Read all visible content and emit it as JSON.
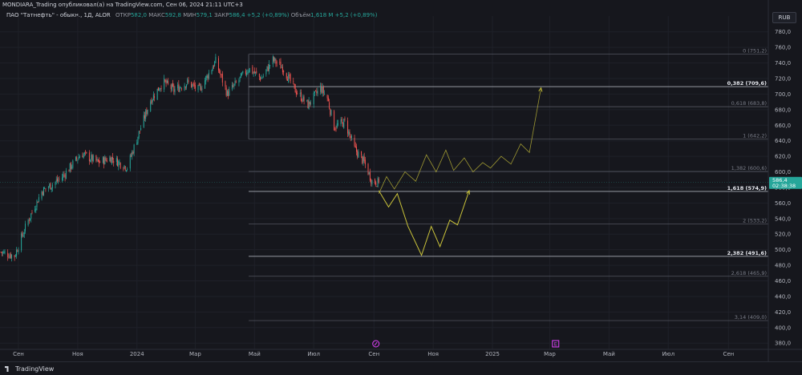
{
  "header": {
    "title_line": "MONDIARA_Trading опубликовал(а) на TradingView.com, Сен 06, 2024 21:11 UTC+3",
    "symbol": "ПАО \"Татнефть\" - обыкн., 1Д, ALOR",
    "open_label": "ОТКР",
    "open_value": "582,0",
    "high_label": "МАКС",
    "high_value": "592,8",
    "low_label": "МИН",
    "low_value": "579,1",
    "close_label": "ЗАКР",
    "close_value": "586,4 +5,2 (+0,89%)",
    "volume_label": "Объём",
    "volume_value": "1,618 M +5,2 (+0,89%)",
    "currency": "RUB"
  },
  "footer": {
    "brand": "TradingView"
  },
  "colors": {
    "background": "#16171d",
    "up": "#26a69a",
    "down": "#ef5350",
    "fib_line": "#5d606b",
    "projection": "#c9c23a",
    "price_badge": "#26a69a",
    "text": "#b2b5be"
  },
  "markers": [
    {
      "label": "",
      "icon": "dividend-marker",
      "date": "2024-09-03",
      "color": "#e040fb"
    },
    {
      "label": "E",
      "icon": "earnings-marker",
      "date": "2025-03-07",
      "color": "#e040fb"
    }
  ],
  "chart_data": {
    "type": "candlestick",
    "x_axis": {
      "type": "date",
      "range": [
        "2023-08-13",
        "2025-10-12"
      ],
      "ticks": [
        {
          "label": "Сен",
          "date": "2023-09-01"
        },
        {
          "label": "Ноя",
          "date": "2023-11-01"
        },
        {
          "label": "2024",
          "date": "2024-01-01"
        },
        {
          "label": "Мар",
          "date": "2024-03-01"
        },
        {
          "label": "Май",
          "date": "2024-05-01"
        },
        {
          "label": "Июл",
          "date": "2024-07-01"
        },
        {
          "label": "Сен",
          "date": "2024-09-01"
        },
        {
          "label": "Ноя",
          "date": "2024-11-01"
        },
        {
          "label": "2025",
          "date": "2025-01-01"
        },
        {
          "label": "Мар",
          "date": "2025-03-01"
        },
        {
          "label": "Май",
          "date": "2025-05-01"
        },
        {
          "label": "Июл",
          "date": "2025-07-01"
        },
        {
          "label": "Сен",
          "date": "2025-09-01"
        }
      ]
    },
    "y_axis": {
      "range": [
        372,
        790
      ],
      "ticks": [
        "780,0",
        "760,0",
        "740,0",
        "720,0",
        "700,0",
        "680,0",
        "660,0",
        "640,0",
        "620,0",
        "600,0",
        "580,0",
        "560,0",
        "540,0",
        "520,0",
        "500,0",
        "480,0",
        "460,0",
        "440,0",
        "420,0",
        "400,0",
        "380,0"
      ]
    },
    "last_price": {
      "value": 586.4,
      "label": "586,4",
      "countdown": "02:38:38"
    },
    "price_anchors": [
      [
        "2023-08-14",
        497
      ],
      [
        "2023-08-28",
        492
      ],
      [
        "2023-09-10",
        535
      ],
      [
        "2023-09-25",
        575
      ],
      [
        "2023-10-15",
        592
      ],
      [
        "2023-11-05",
        624
      ],
      [
        "2023-11-22",
        612
      ],
      [
        "2023-12-05",
        618
      ],
      [
        "2023-12-22",
        606
      ],
      [
        "2024-01-03",
        650
      ],
      [
        "2024-01-15",
        692
      ],
      [
        "2024-01-28",
        716
      ],
      [
        "2024-02-08",
        705
      ],
      [
        "2024-02-22",
        715
      ],
      [
        "2024-03-05",
        705
      ],
      [
        "2024-03-22",
        742
      ],
      [
        "2024-04-03",
        700
      ],
      [
        "2024-04-15",
        718
      ],
      [
        "2024-04-25",
        733
      ],
      [
        "2024-05-08",
        720
      ],
      [
        "2024-05-20",
        744
      ],
      [
        "2024-05-30",
        734
      ],
      [
        "2024-06-12",
        705
      ],
      [
        "2024-06-25",
        686
      ],
      [
        "2024-07-08",
        708
      ],
      [
        "2024-07-15",
        695
      ],
      [
        "2024-07-22",
        658
      ],
      [
        "2024-08-02",
        664
      ],
      [
        "2024-08-12",
        630
      ],
      [
        "2024-08-22",
        612
      ],
      [
        "2024-08-30",
        588
      ],
      [
        "2024-09-06",
        586.4
      ]
    ],
    "fibonacci": {
      "start_date": "2024-04-25",
      "end_date": "2025-10-12",
      "range_high": 751.2,
      "range_low": 642.2,
      "levels": [
        {
          "label": "0 (751,2)",
          "value": 751.2,
          "bold": false
        },
        {
          "label": "0,382 (709,6)",
          "value": 709.6,
          "bold": true
        },
        {
          "label": "0,618 (683,8)",
          "value": 683.8,
          "bold": false
        },
        {
          "label": "1 (642,2)",
          "value": 642.2,
          "bold": false
        },
        {
          "label": "1,382 (600,6)",
          "value": 600.6,
          "bold": false
        },
        {
          "label": "1,618 (574,9)",
          "value": 574.9,
          "bold": true
        },
        {
          "label": "2 (533,2)",
          "value": 533.2,
          "bold": false
        },
        {
          "label": "2,382 (491,6)",
          "value": 491.6,
          "bold": true
        },
        {
          "label": "2,618 (465,9)",
          "value": 465.9,
          "bold": false
        },
        {
          "label": "3,14 (409,0)",
          "value": 409.0,
          "bold": false
        }
      ]
    },
    "projections": [
      {
        "name": "",
        "points": [
          [
            "2024-09-06",
            572
          ],
          [
            "2024-09-14",
            594
          ],
          [
            "2024-09-22",
            578
          ],
          [
            "2024-10-03",
            600
          ],
          [
            "2024-10-14",
            588
          ],
          [
            "2024-10-25",
            622
          ],
          [
            "2024-11-04",
            600
          ],
          [
            "2024-11-14",
            628
          ],
          [
            "2024-11-22",
            602
          ],
          [
            "2024-12-03",
            618
          ],
          [
            "2024-12-12",
            600
          ],
          [
            "2024-12-22",
            612
          ],
          [
            "2024-12-30",
            605
          ],
          [
            "2025-01-10",
            620
          ],
          [
            "2025-01-20",
            610
          ],
          [
            "2025-01-30",
            636
          ],
          [
            "2025-02-08",
            625
          ],
          [
            "2025-02-20",
            708
          ]
        ]
      },
      {
        "name": "",
        "points": [
          [
            "2024-09-06",
            576
          ],
          [
            "2024-09-16",
            555
          ],
          [
            "2024-09-25",
            572
          ],
          [
            "2024-10-06",
            530
          ],
          [
            "2024-10-20",
            493
          ],
          [
            "2024-10-30",
            530
          ],
          [
            "2024-11-08",
            504
          ],
          [
            "2024-11-18",
            538
          ],
          [
            "2024-11-26",
            532
          ],
          [
            "2024-12-08",
            576
          ]
        ]
      }
    ]
  }
}
